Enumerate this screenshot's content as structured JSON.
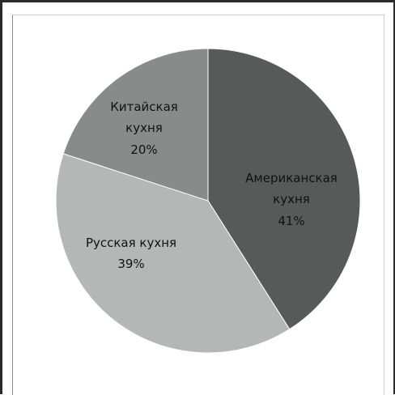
{
  "chart_data": {
    "type": "pie",
    "slices": [
      {
        "label_lines": [
          "Американская",
          "кухня"
        ],
        "percent_label": "41%",
        "value": 41,
        "color": "#585a5a"
      },
      {
        "label_lines": [
          "Русская кухня"
        ],
        "percent_label": "39%",
        "value": 39,
        "color": "#b5b7b7"
      },
      {
        "label_lines": [
          "Китайская",
          "кухня"
        ],
        "percent_label": "20%",
        "value": 20,
        "color": "#898b8b"
      }
    ],
    "start_angle_deg": 0,
    "direction": "clockwise",
    "legend": "none"
  }
}
